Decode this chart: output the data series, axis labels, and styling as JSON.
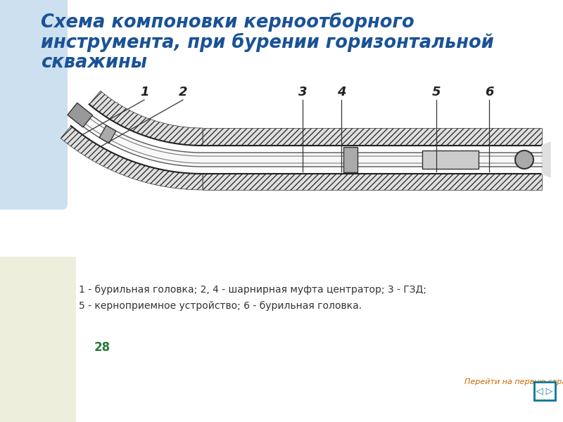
{
  "title_line1": "Схема компоновки керноотборного",
  "title_line2": "инструмента, при бурении горизонтальной",
  "title_line3": "скважины",
  "title_color": "#1a5296",
  "bg_color": "#ffffff",
  "left_bg_color": "#cce0f0",
  "bottom_left_color": "#eeeedd",
  "caption_line1": "1 - бурильная головка; 2, 4 - шарнирная муфта центратор; 3 - ГЗД;",
  "caption_line2": "5 - керноприемное устройство; 6 - бурильная головка.",
  "caption_color": "#333333",
  "page_number": "28",
  "page_number_color": "#2a7a3a",
  "nav_text": "Перейти на первую страницу",
  "nav_color": "#cc6600",
  "label_numbers": [
    "1",
    "2",
    "3",
    "4",
    "5",
    "6"
  ]
}
